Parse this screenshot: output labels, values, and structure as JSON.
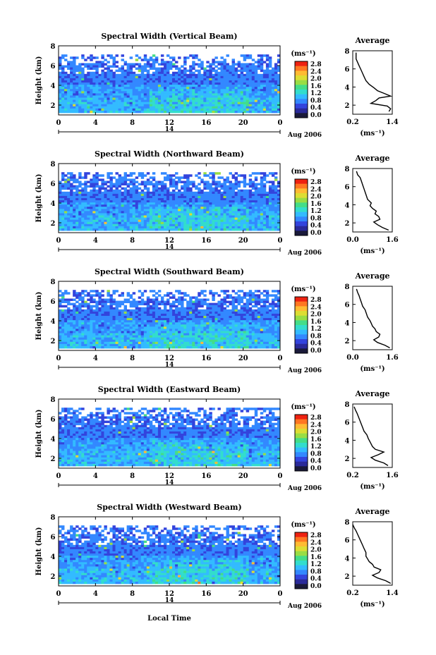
{
  "figure": {
    "xlabel": "Local Time",
    "date_label": "Aug 2006",
    "day_label": "14",
    "colorbar_unit": "(ms⁻¹)",
    "avg_title": "Average",
    "avg_unit": "(ms⁻¹)"
  },
  "colors": {
    "scale": [
      "#1a1a3a",
      "#2a2a9a",
      "#3344dd",
      "#3388ff",
      "#33bbff",
      "#33ddcc",
      "#44dd88",
      "#99dd44",
      "#dddd33",
      "#ffbb33",
      "#ff7722",
      "#ee2211"
    ]
  },
  "chart_data": [
    {
      "type": "heatmap",
      "title": "Spectral Width (Vertical Beam)",
      "ylabel": "Height (km)",
      "xticks": [
        "0",
        "4",
        "8",
        "12",
        "16",
        "20",
        "0"
      ],
      "yticks": [
        "2",
        "4",
        "6",
        "8"
      ],
      "colorbar_ticks": [
        "2.8",
        "2.4",
        "2.0",
        "1.6",
        "1.2",
        "0.8",
        "0.4",
        "0.0"
      ],
      "xlim": [
        0,
        24
      ],
      "ylim": [
        1,
        8
      ],
      "colorbar_range": [
        0.0,
        2.8
      ],
      "average": {
        "xticks": [
          "0.2",
          "1.4"
        ],
        "yticks": [
          "2",
          "4",
          "6",
          "8"
        ],
        "xlim": [
          0.2,
          1.4
        ],
        "ylim": [
          1,
          8
        ],
        "x": [
          1.3,
          1.35,
          1.25,
          0.75,
          0.9,
          1.0,
          1.35,
          1.15,
          0.95,
          0.85,
          0.7,
          0.6,
          0.55,
          0.5,
          0.45,
          0.4,
          0.35,
          0.3,
          0.3,
          0.3
        ],
        "y": [
          1.3,
          1.6,
          1.9,
          2.2,
          2.5,
          2.8,
          3.0,
          3.3,
          3.6,
          3.9,
          4.3,
          4.7,
          5.1,
          5.5,
          5.9,
          6.3,
          6.7,
          7.1,
          7.4,
          7.8
        ]
      }
    },
    {
      "type": "heatmap",
      "title": "Spectral Width (Northward Beam)",
      "ylabel": "Height (km)",
      "xticks": [
        "0",
        "4",
        "8",
        "12",
        "16",
        "20",
        "0"
      ],
      "yticks": [
        "2",
        "4",
        "6",
        "8"
      ],
      "colorbar_ticks": [
        "2.8",
        "2.4",
        "2.0",
        "1.6",
        "1.2",
        "0.8",
        "0.4",
        "0.0"
      ],
      "xlim": [
        0,
        24
      ],
      "ylim": [
        1,
        8
      ],
      "colorbar_range": [
        0.0,
        2.8
      ],
      "average": {
        "xticks": [
          "0.0",
          "1.6"
        ],
        "yticks": [
          "2",
          "4",
          "6",
          "8"
        ],
        "xlim": [
          0.0,
          1.6
        ],
        "ylim": [
          1,
          8
        ],
        "x": [
          1.45,
          1.2,
          1.0,
          0.85,
          1.1,
          1.05,
          0.9,
          0.95,
          0.8,
          0.7,
          0.75,
          0.6,
          0.55,
          0.5,
          0.45,
          0.4,
          0.35,
          0.3,
          0.2,
          0.15
        ],
        "y": [
          1.2,
          1.5,
          1.8,
          2.1,
          2.4,
          2.7,
          3.0,
          3.3,
          3.6,
          3.9,
          4.2,
          4.6,
          5.0,
          5.4,
          5.8,
          6.2,
          6.6,
          7.0,
          7.3,
          7.7
        ]
      }
    },
    {
      "type": "heatmap",
      "title": "Spectral Width (Southward Beam)",
      "ylabel": "Height (km)",
      "xticks": [
        "0",
        "4",
        "8",
        "12",
        "16",
        "20",
        "0"
      ],
      "yticks": [
        "2",
        "4",
        "6",
        "8"
      ],
      "colorbar_ticks": [
        "2.8",
        "2.4",
        "2.0",
        "1.6",
        "1.2",
        "0.8",
        "0.4",
        "0.0"
      ],
      "xlim": [
        0,
        24
      ],
      "ylim": [
        1,
        8
      ],
      "colorbar_range": [
        0.0,
        2.8
      ],
      "average": {
        "xticks": [
          "0.0",
          "1.6"
        ],
        "yticks": [
          "2",
          "4",
          "6",
          "8"
        ],
        "xlim": [
          0.0,
          1.6
        ],
        "ylim": [
          1,
          8
        ],
        "x": [
          1.5,
          1.3,
          1.0,
          0.85,
          1.05,
          1.1,
          0.95,
          0.9,
          0.8,
          0.75,
          0.7,
          0.6,
          0.55,
          0.5,
          0.4,
          0.35,
          0.3,
          0.25,
          0.2,
          0.15
        ],
        "y": [
          1.2,
          1.5,
          1.8,
          2.1,
          2.4,
          2.7,
          3.0,
          3.3,
          3.6,
          3.9,
          4.2,
          4.6,
          5.0,
          5.4,
          5.8,
          6.2,
          6.6,
          7.0,
          7.3,
          7.7
        ]
      }
    },
    {
      "type": "heatmap",
      "title": "Spectral Width (Eastward Beam)",
      "ylabel": "Height (km)",
      "xticks": [
        "0",
        "4",
        "8",
        "12",
        "16",
        "20",
        "0"
      ],
      "yticks": [
        "2",
        "4",
        "6",
        "8"
      ],
      "colorbar_ticks": [
        "2.8",
        "2.4",
        "2.0",
        "1.6",
        "1.2",
        "0.8",
        "0.4",
        "0.0"
      ],
      "xlim": [
        0,
        24
      ],
      "ylim": [
        1,
        8
      ],
      "colorbar_range": [
        0.0,
        2.8
      ],
      "average": {
        "xticks": [
          "0.2",
          "1.6"
        ],
        "yticks": [
          "2",
          "4",
          "6",
          "8"
        ],
        "xlim": [
          0.2,
          1.6
        ],
        "ylim": [
          1,
          8
        ],
        "x": [
          1.45,
          1.3,
          1.0,
          0.85,
          1.1,
          1.3,
          1.0,
          0.9,
          0.85,
          0.8,
          0.75,
          0.7,
          0.6,
          0.55,
          0.5,
          0.45,
          0.4,
          0.35,
          0.3,
          0.25
        ],
        "y": [
          1.2,
          1.5,
          1.8,
          2.1,
          2.4,
          2.7,
          3.0,
          3.3,
          3.6,
          3.9,
          4.2,
          4.6,
          5.0,
          5.4,
          5.8,
          6.2,
          6.6,
          7.0,
          7.3,
          7.7
        ]
      }
    },
    {
      "type": "heatmap",
      "title": "Spectral Width (Westward Beam)",
      "ylabel": "Height (km)",
      "xticks": [
        "0",
        "4",
        "8",
        "12",
        "16",
        "20",
        "0"
      ],
      "yticks": [
        "2",
        "4",
        "6",
        "8"
      ],
      "colorbar_ticks": [
        "2.8",
        "2.4",
        "2.0",
        "1.6",
        "1.2",
        "0.8",
        "0.4",
        "0.0"
      ],
      "xlim": [
        0,
        24
      ],
      "ylim": [
        1,
        8
      ],
      "colorbar_range": [
        0.0,
        2.8
      ],
      "average": {
        "xticks": [
          "0.2",
          "1.4"
        ],
        "yticks": [
          "2",
          "4",
          "6",
          "8"
        ],
        "xlim": [
          0.2,
          1.4
        ],
        "ylim": [
          1,
          8
        ],
        "x": [
          1.35,
          1.2,
          0.95,
          0.8,
          1.0,
          1.05,
          0.85,
          0.8,
          0.7,
          0.65,
          0.6,
          0.6,
          0.55,
          0.5,
          0.45,
          0.4,
          0.35,
          0.3,
          0.25,
          0.2
        ],
        "y": [
          1.2,
          1.5,
          1.8,
          2.1,
          2.4,
          2.7,
          3.0,
          3.3,
          3.6,
          3.9,
          4.2,
          4.6,
          5.0,
          5.4,
          5.8,
          6.2,
          6.6,
          7.0,
          7.3,
          7.7
        ]
      }
    }
  ]
}
